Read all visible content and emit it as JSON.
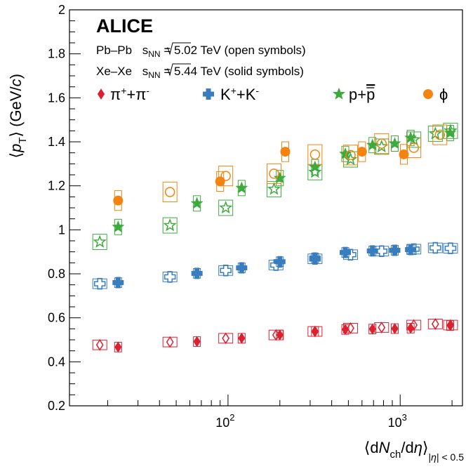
{
  "chart_data": {
    "type": "scatter",
    "title": "",
    "xscale": "log",
    "xlim": [
      12,
      2300
    ],
    "ylim": [
      0.2,
      2.0
    ],
    "grid": false,
    "ylabel_parts": {
      "open": "⟨",
      "var": "p",
      "sub": "T",
      "close": "⟩",
      "unit": " (GeV/",
      "unit_var": "c",
      "unit_close": ")"
    },
    "xlabel_parts": {
      "open": "⟨d",
      "var": "N",
      "sub": "ch",
      "mid": "/d",
      "eta": "η",
      "close": "⟩",
      "range_sub_a": "|",
      "range_sub_eta": "η",
      "range_sub_b": "| < 0.5"
    },
    "yticks": [
      {
        "v": 0.2,
        "label": "0.2"
      },
      {
        "v": 0.4,
        "label": "0.4"
      },
      {
        "v": 0.6,
        "label": "0.6"
      },
      {
        "v": 0.8,
        "label": "0.8"
      },
      {
        "v": 1.0,
        "label": "1"
      },
      {
        "v": 1.2,
        "label": "1.2"
      },
      {
        "v": 1.4,
        "label": "1.4"
      },
      {
        "v": 1.6,
        "label": "1.6"
      },
      {
        "v": 1.8,
        "label": "1.8"
      },
      {
        "v": 2.0,
        "label": "2"
      }
    ],
    "xticks": [
      {
        "v": 100,
        "base": "10",
        "exp": "2"
      },
      {
        "v": 1000,
        "base": "10",
        "exp": "3"
      }
    ],
    "annotations": {
      "brand": "ALICE",
      "line1": {
        "system": "Pb–Pb ",
        "sqrt_s": "s",
        "sub": "NN",
        "value": " = 5.02 TeV (open symbols)"
      },
      "line2": {
        "system": "Xe–Xe ",
        "sqrt_s": "s",
        "sub": "NN",
        "value": " = 5.44 TeV (solid symbols)"
      }
    },
    "series": [
      {
        "name": "π⁺+π⁻",
        "legend_parts": [
          {
            "t": "π"
          },
          {
            "t": "+",
            "sup": true
          },
          {
            "t": "+π"
          },
          {
            "t": "-",
            "sup": true
          }
        ],
        "color": "#dd2030",
        "marker": "diamond",
        "pbpb": [
          [
            18,
            0.477
          ],
          [
            46,
            0.49
          ],
          [
            97,
            0.507
          ],
          [
            190,
            0.522
          ],
          [
            320,
            0.538
          ],
          [
            515,
            0.553
          ],
          [
            780,
            0.556
          ],
          [
            1200,
            0.567
          ],
          [
            1600,
            0.572
          ],
          [
            1960,
            0.567
          ]
        ],
        "xexe": [
          [
            23,
            0.467
          ],
          [
            66,
            0.492
          ],
          [
            120,
            0.507
          ],
          [
            200,
            0.522
          ],
          [
            320,
            0.538
          ],
          [
            480,
            0.547
          ],
          [
            690,
            0.549
          ],
          [
            930,
            0.551
          ],
          [
            1150,
            0.553
          ],
          [
            1950,
            0.565
          ]
        ]
      },
      {
        "name": "K⁺+K⁻",
        "legend_parts": [
          {
            "t": "K"
          },
          {
            "t": "+",
            "sup": true
          },
          {
            "t": "+K"
          },
          {
            "t": "-",
            "sup": true
          }
        ],
        "color": "#3a7dbf",
        "marker": "cross",
        "pbpb": [
          [
            18,
            0.755
          ],
          [
            46,
            0.786
          ],
          [
            97,
            0.815
          ],
          [
            190,
            0.84
          ],
          [
            320,
            0.868
          ],
          [
            515,
            0.887
          ],
          [
            780,
            0.903
          ],
          [
            1200,
            0.912
          ],
          [
            1600,
            0.918
          ],
          [
            1960,
            0.916
          ]
        ],
        "xexe": [
          [
            23,
            0.76
          ],
          [
            66,
            0.802
          ],
          [
            120,
            0.827
          ],
          [
            200,
            0.855
          ],
          [
            320,
            0.872
          ],
          [
            480,
            0.897
          ],
          [
            690,
            0.904
          ],
          [
            930,
            0.907
          ],
          [
            1150,
            0.91
          ]
        ]
      },
      {
        "name": "p+p̄",
        "legend_parts": [
          {
            "t": "p+"
          },
          {
            "t": "p",
            "bar": true
          }
        ],
        "color": "#3daa3d",
        "marker": "star",
        "pbpb": [
          [
            18,
            0.945
          ],
          [
            46,
            1.02
          ],
          [
            97,
            1.1
          ],
          [
            185,
            1.185
          ],
          [
            320,
            1.262
          ],
          [
            515,
            1.32
          ],
          [
            780,
            1.378
          ],
          [
            1200,
            1.41
          ],
          [
            1600,
            1.437
          ],
          [
            1960,
            1.45
          ]
        ],
        "xexe": [
          [
            23,
            1.013
          ],
          [
            66,
            1.12
          ],
          [
            120,
            1.19
          ],
          [
            200,
            1.235
          ],
          [
            320,
            1.285
          ],
          [
            480,
            1.345
          ],
          [
            690,
            1.385
          ],
          [
            930,
            1.392
          ],
          [
            1150,
            1.418
          ],
          [
            1950,
            1.44
          ]
        ]
      },
      {
        "name": "ϕ",
        "legend_parts": [
          {
            "t": "ϕ"
          }
        ],
        "color": "#f5830f",
        "marker": "circle",
        "pbpb": [
          [
            46,
            1.172
          ],
          [
            97,
            1.245
          ],
          [
            185,
            1.255
          ],
          [
            320,
            1.342
          ],
          [
            515,
            1.34
          ],
          [
            780,
            1.392
          ],
          [
            1200,
            1.373
          ],
          [
            1700,
            1.432
          ]
        ],
        "xexe": [
          [
            23,
            1.133
          ],
          [
            90,
            1.22
          ],
          [
            215,
            1.355
          ],
          [
            600,
            1.355
          ],
          [
            1050,
            1.343
          ]
        ]
      }
    ]
  }
}
